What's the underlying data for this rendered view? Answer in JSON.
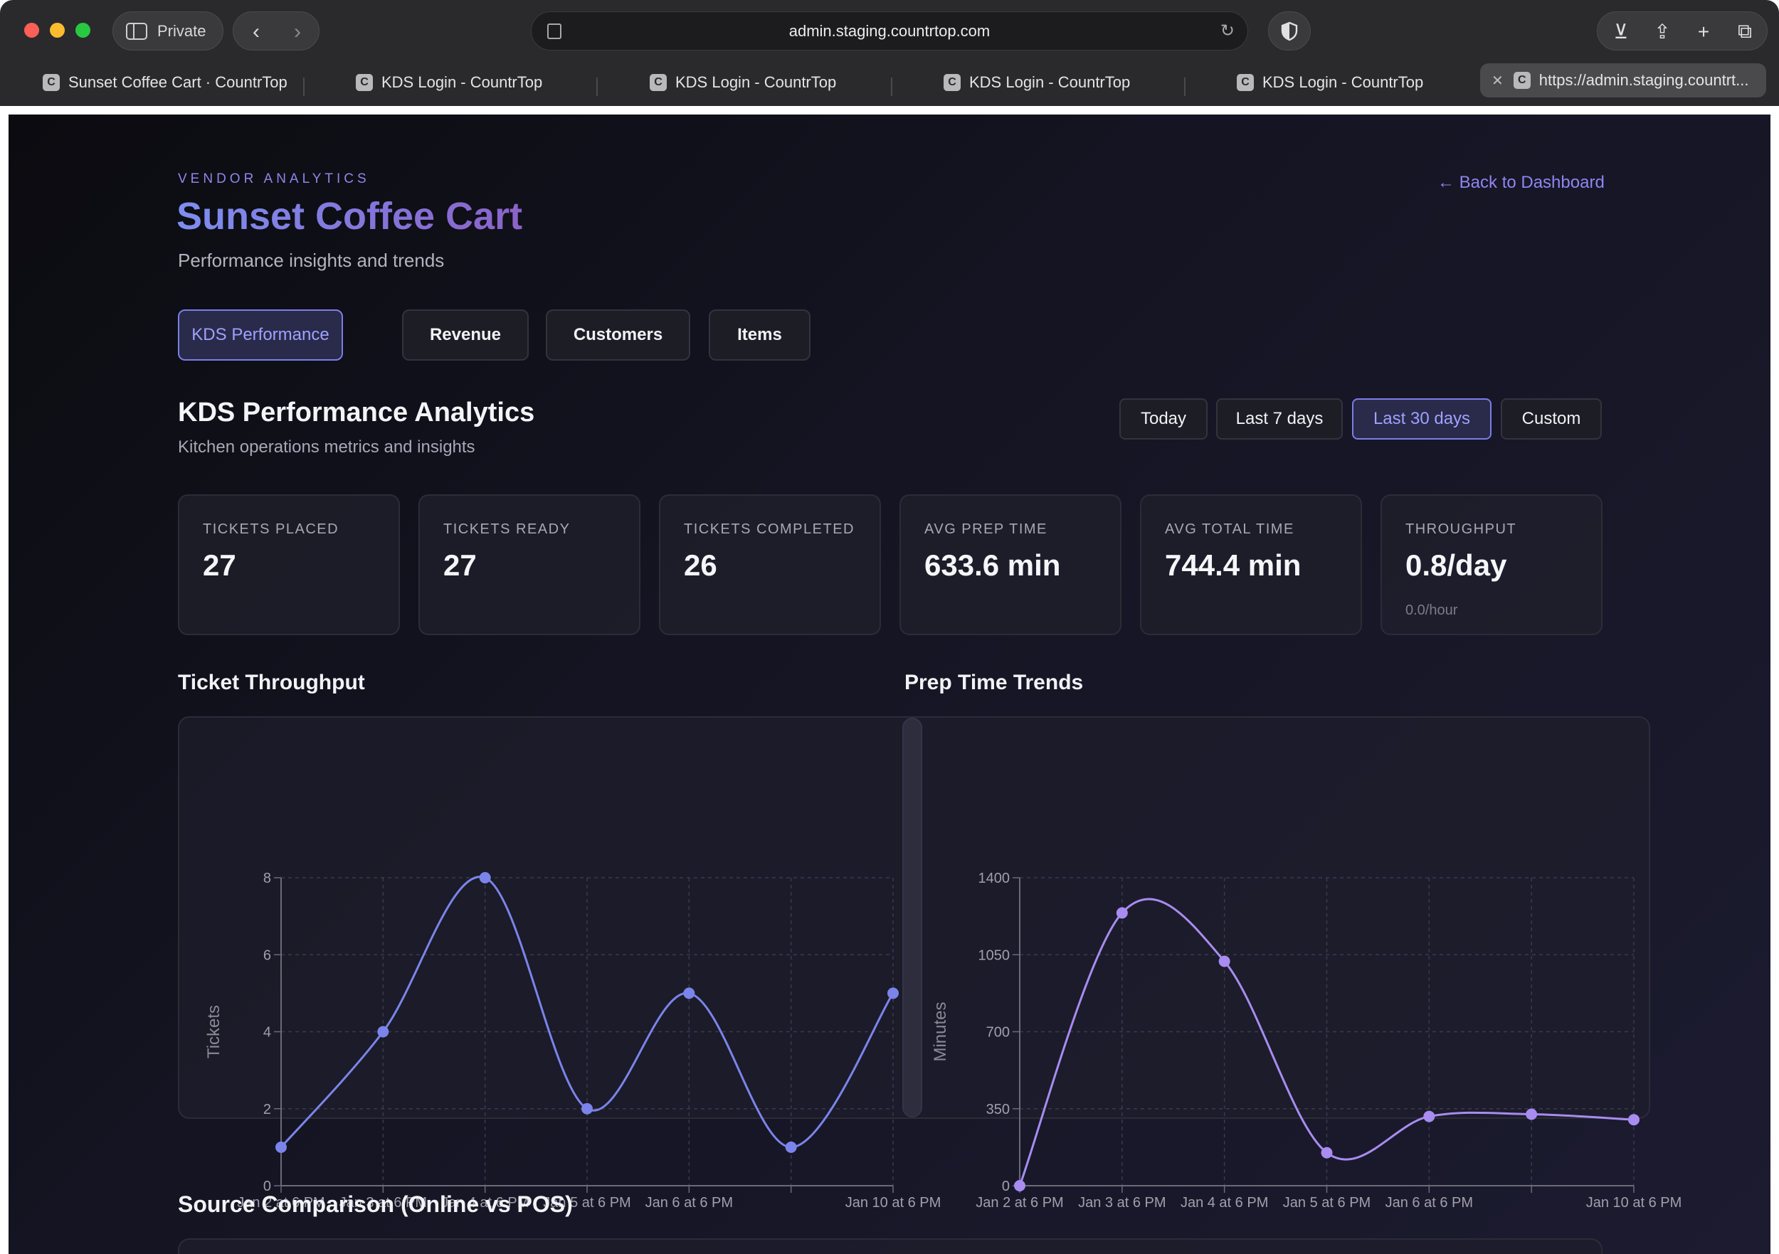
{
  "browser": {
    "private_label": "Private",
    "url": "admin.staging.countrtop.com",
    "tabs": [
      {
        "title": "Sunset Coffee Cart · CountrTop",
        "favicon": "C"
      },
      {
        "title": "KDS Login - CountrTop",
        "favicon": "C"
      },
      {
        "title": "KDS Login - CountrTop",
        "favicon": "C"
      },
      {
        "title": "KDS Login - CountrTop",
        "favicon": "C"
      },
      {
        "title": "KDS Login - CountrTop",
        "favicon": "C"
      },
      {
        "title": "https://admin.staging.countrt...",
        "favicon": "C"
      }
    ],
    "icons": [
      "sidebar-icon",
      "back-icon",
      "forward-icon",
      "page-icon",
      "reload-icon",
      "shield-icon",
      "download-icon",
      "share-icon",
      "new-tab-icon",
      "tab-overview-icon",
      "close-tab-icon"
    ]
  },
  "header": {
    "eyebrow": "VENDOR ANALYTICS",
    "title": "Sunset Coffee Cart",
    "subtitle": "Performance insights and trends",
    "back_link": "← Back to Dashboard"
  },
  "tabs": [
    {
      "label": "KDS Performance",
      "active": true
    },
    {
      "label": "Revenue",
      "active": false
    },
    {
      "label": "Customers",
      "active": false
    },
    {
      "label": "Items",
      "active": false
    }
  ],
  "section": {
    "title": "KDS Performance Analytics",
    "subtitle": "Kitchen operations metrics and insights"
  },
  "date_ranges": [
    {
      "label": "Today",
      "active": false
    },
    {
      "label": "Last 7 days",
      "active": false
    },
    {
      "label": "Last 30 days",
      "active": true
    },
    {
      "label": "Custom",
      "active": false
    }
  ],
  "stats": [
    {
      "label": "TICKETS PLACED",
      "value": "27"
    },
    {
      "label": "TICKETS READY",
      "value": "27"
    },
    {
      "label": "TICKETS COMPLETED",
      "value": "26"
    },
    {
      "label": "AVG PREP TIME",
      "value": "633.6 min"
    },
    {
      "label": "AVG TOTAL TIME",
      "value": "744.4 min"
    },
    {
      "label": "THROUGHPUT",
      "value": "0.8/day",
      "extra": "0.0/hour"
    }
  ],
  "colors": {
    "accent": "#8d87e8",
    "throughput_line": "#7b84ea",
    "prep_line": "#a88cf0"
  },
  "chart_data": [
    {
      "type": "line",
      "title": "Ticket Throughput",
      "ylabel": "Tickets",
      "xlabel": "",
      "x": [
        "Jan 2 at 6 PM",
        "Jan 3 at 6 PM",
        "Jan 4 at 6 PM",
        "Jan 5 at 6 PM",
        "Jan 6 at 6 PM",
        "",
        "Jan 10 at 6 PM"
      ],
      "series": [
        {
          "values": [
            1,
            4,
            8,
            2,
            5,
            1,
            5
          ]
        }
      ],
      "ylim": [
        0,
        8
      ],
      "yticks": [
        0,
        2,
        4,
        6,
        8
      ],
      "grid": true
    },
    {
      "type": "line",
      "title": "Prep Time Trends",
      "ylabel": "Minutes",
      "xlabel": "",
      "x": [
        "Jan 2 at 6 PM",
        "Jan 3 at 6 PM",
        "Jan 4 at 6 PM",
        "Jan 5 at 6 PM",
        "Jan 6 at 6 PM",
        "",
        "Jan 10 at 6 PM"
      ],
      "series": [
        {
          "values": [
            0,
            1240,
            1020,
            150,
            315,
            325,
            300
          ]
        }
      ],
      "ylim": [
        0,
        1400
      ],
      "yticks": [
        0,
        350,
        700,
        1050,
        1400
      ],
      "grid": true
    }
  ],
  "source_comparison": {
    "title": "Source Comparison (Online vs POS)"
  }
}
